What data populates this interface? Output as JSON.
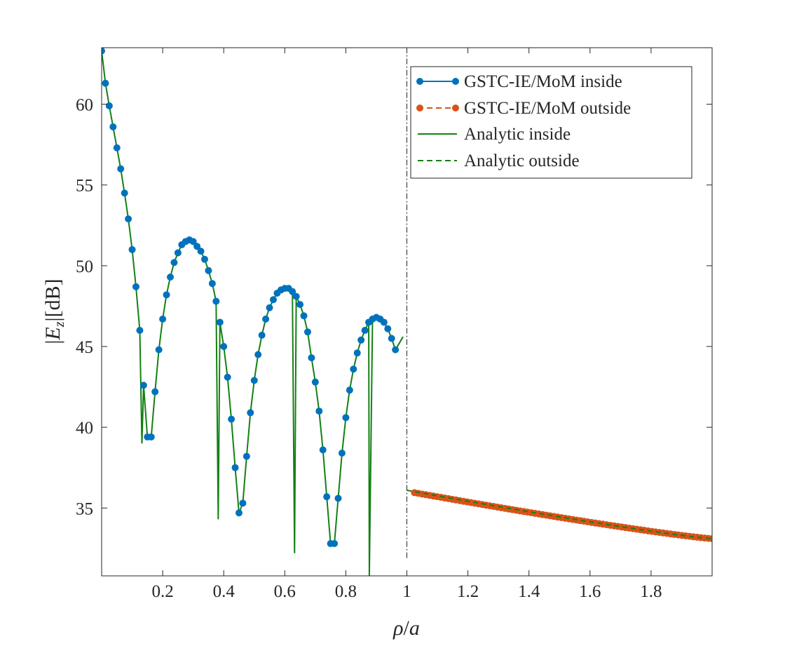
{
  "chart_data": {
    "type": "line",
    "title": "",
    "xlabel": "ρ/a",
    "ylabel": "|E_z| [dB]",
    "xlim": [
      0.0,
      2.0
    ],
    "ylim": [
      30.8,
      63.5
    ],
    "xticks": [
      0.2,
      0.4,
      0.6,
      0.8,
      1.0,
      1.2,
      1.4,
      1.6,
      1.8
    ],
    "xtick_labels": [
      "0.2",
      "0.4",
      "0.6",
      "0.8",
      "1",
      "1.2",
      "1.4",
      "1.6",
      "1.8"
    ],
    "yticks": [
      35,
      40,
      45,
      50,
      55,
      60
    ],
    "ytick_labels": [
      "35",
      "40",
      "45",
      "50",
      "55",
      "60"
    ],
    "ylabel_parts": {
      "bar_open": "|",
      "symbol": "E",
      "subscript": "z",
      "bar_close": "|",
      "unit": "[dB]"
    },
    "xlabel_parts": {
      "rho": "ρ",
      "slash": "/",
      "a": "a"
    },
    "boundary_x": 1.0,
    "boundary_y_range": [
      31.9,
      63.5
    ],
    "legend": {
      "position": "top-right",
      "entries": [
        {
          "label": "GSTC-IE/MoM inside",
          "color": "#0072BD",
          "style": "solid",
          "marker": "dot"
        },
        {
          "label": "GSTC-IE/MoM outside",
          "color": "#D95319",
          "style": "dashed",
          "marker": "dot"
        },
        {
          "label": "Analytic inside",
          "color": "#138013",
          "style": "solid",
          "marker": "none"
        },
        {
          "label": "Analytic outside",
          "color": "#138013",
          "style": "dashed",
          "marker": "none"
        }
      ]
    },
    "series": [
      {
        "name": "GSTC-IE/MoM inside",
        "color": "#0072BD",
        "x": [
          0.0,
          0.0125,
          0.025,
          0.0375,
          0.05,
          0.0625,
          0.075,
          0.0875,
          0.1,
          0.1125,
          0.125,
          0.1375,
          0.15,
          0.1625,
          0.175,
          0.1875,
          0.2,
          0.2125,
          0.225,
          0.2375,
          0.25,
          0.2625,
          0.275,
          0.2875,
          0.3,
          0.3125,
          0.325,
          0.3375,
          0.35,
          0.3625,
          0.375,
          0.3875,
          0.4,
          0.4125,
          0.425,
          0.4375,
          0.45,
          0.4625,
          0.475,
          0.4875,
          0.5,
          0.5125,
          0.525,
          0.5375,
          0.55,
          0.5625,
          0.575,
          0.5875,
          0.6,
          0.6125,
          0.625,
          0.6375,
          0.65,
          0.6625,
          0.675,
          0.6875,
          0.7,
          0.7125,
          0.725,
          0.7375,
          0.75,
          0.7625,
          0.775,
          0.7875,
          0.8,
          0.8125,
          0.825,
          0.8375,
          0.85,
          0.8625,
          0.875,
          0.8875,
          0.9,
          0.9125,
          0.925,
          0.9375,
          0.95,
          0.9625
        ],
        "y": [
          63.3,
          61.3,
          59.9,
          58.6,
          57.3,
          56.0,
          54.5,
          52.9,
          51.0,
          48.7,
          46.0,
          42.6,
          39.4,
          39.4,
          42.2,
          44.8,
          46.7,
          48.2,
          49.3,
          50.2,
          50.8,
          51.3,
          51.5,
          51.6,
          51.5,
          51.2,
          50.9,
          50.4,
          49.7,
          48.9,
          47.8,
          46.5,
          45.0,
          43.1,
          40.5,
          37.5,
          34.7,
          35.3,
          38.2,
          40.9,
          42.9,
          44.5,
          45.7,
          46.7,
          47.4,
          47.9,
          48.3,
          48.5,
          48.6,
          48.6,
          48.4,
          48.1,
          47.6,
          46.9,
          45.9,
          44.3,
          42.8,
          41.0,
          38.6,
          35.7,
          32.8,
          32.8,
          35.6,
          38.4,
          40.6,
          42.3,
          43.6,
          44.6,
          45.4,
          46.0,
          46.5,
          46.7,
          46.8,
          46.7,
          46.5,
          46.1,
          45.5,
          44.8
        ],
        "_note": "x values are approximately uniform samples; see x_source"
      },
      {
        "name": "GSTC-IE/MoM outside",
        "color": "#D95319",
        "x_start": 1.025,
        "x_end": 2.0,
        "y_start": 35.95,
        "y_end": 33.1
      },
      {
        "name": "Analytic inside",
        "color": "#138013"
      },
      {
        "name": "Analytic outside",
        "color": "#138013",
        "x_start": 1.0,
        "x_end": 2.0,
        "y_start": 36.1,
        "y_end": 33.1
      }
    ]
  }
}
